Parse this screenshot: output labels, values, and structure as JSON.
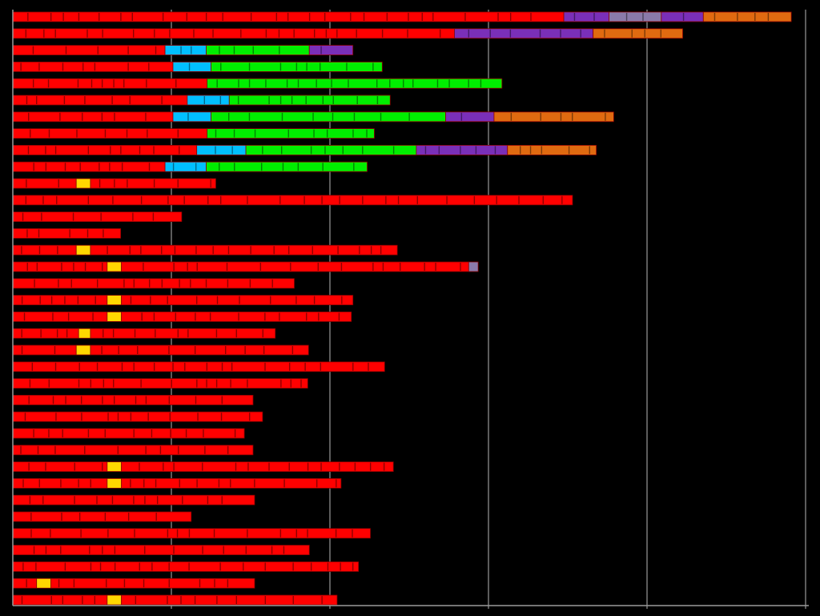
{
  "chart_data": {
    "type": "bar",
    "orientation": "horizontal",
    "stacked": true,
    "title": "",
    "xlabel": "",
    "ylabel": "",
    "xlim": [
      0,
      10
    ],
    "grid": true,
    "gridlines_x": [
      2,
      4,
      6,
      8,
      10
    ],
    "colors": {
      "red": "#ff0000",
      "cyan": "#00bfff",
      "green": "#00ee00",
      "purple": "#7a2fb8",
      "lavender": "#8a7aaa",
      "orange": "#e06a10",
      "yellow": "#ffd700",
      "bar_edge": "#8a0000",
      "background": "#000000",
      "gridline": "#9a9a9a"
    },
    "rows": [
      {
        "segments": [
          [
            "red",
            6.95
          ],
          [
            "purple",
            0.57
          ],
          [
            "lavender",
            0.66
          ],
          [
            "purple",
            0.53
          ],
          [
            "orange",
            1.11
          ]
        ]
      },
      {
        "segments": [
          [
            "red",
            5.57
          ],
          [
            "purple",
            1.75
          ],
          [
            "orange",
            1.13
          ]
        ]
      },
      {
        "segments": [
          [
            "red",
            1.92
          ],
          [
            "cyan",
            0.52
          ],
          [
            "green",
            1.3
          ],
          [
            "purple",
            0.55
          ]
        ]
      },
      {
        "segments": [
          [
            "red",
            2.02
          ],
          [
            "cyan",
            0.48
          ],
          [
            "green",
            2.16
          ]
        ]
      },
      {
        "segments": [
          [
            "red",
            2.45
          ],
          [
            "green",
            3.72
          ]
        ]
      },
      {
        "segments": [
          [
            "red",
            2.2
          ],
          [
            "cyan",
            0.53
          ],
          [
            "green",
            2.03
          ]
        ]
      },
      {
        "segments": [
          [
            "red",
            2.02
          ],
          [
            "cyan",
            0.48
          ],
          [
            "green",
            2.96
          ],
          [
            "purple",
            0.61
          ],
          [
            "orange",
            1.51
          ]
        ]
      },
      {
        "segments": [
          [
            "red",
            2.45
          ],
          [
            "green",
            2.11
          ]
        ]
      },
      {
        "segments": [
          [
            "red",
            2.32
          ],
          [
            "cyan",
            0.62
          ],
          [
            "green",
            2.15
          ],
          [
            "purple",
            1.15
          ],
          [
            "orange",
            1.12
          ]
        ]
      },
      {
        "segments": [
          [
            "red",
            1.92
          ],
          [
            "cyan",
            0.52
          ],
          [
            "green",
            2.03
          ]
        ]
      },
      {
        "segments": [
          [
            "red",
            0.8
          ],
          [
            "yellow",
            0.18
          ],
          [
            "red",
            1.58
          ]
        ]
      },
      {
        "segments": [
          [
            "red",
            7.06
          ]
        ]
      },
      {
        "segments": [
          [
            "red",
            2.13
          ]
        ]
      },
      {
        "segments": [
          [
            "red",
            1.36
          ]
        ]
      },
      {
        "segments": [
          [
            "red",
            0.8
          ],
          [
            "yellow",
            0.18
          ],
          [
            "red",
            3.87
          ]
        ]
      },
      {
        "segments": [
          [
            "red",
            1.19
          ],
          [
            "yellow",
            0.18
          ],
          [
            "red",
            4.38
          ],
          [
            "lavender",
            0.12
          ]
        ]
      },
      {
        "segments": [
          [
            "red",
            3.55
          ]
        ]
      },
      {
        "segments": [
          [
            "red",
            1.19
          ],
          [
            "yellow",
            0.18
          ],
          [
            "red",
            2.92
          ]
        ]
      },
      {
        "segments": [
          [
            "red",
            1.19
          ],
          [
            "yellow",
            0.18
          ],
          [
            "red",
            2.9
          ]
        ]
      },
      {
        "segments": [
          [
            "red",
            0.83
          ],
          [
            "yellow",
            0.15
          ],
          [
            "red",
            2.33
          ]
        ]
      },
      {
        "segments": [
          [
            "red",
            0.8
          ],
          [
            "yellow",
            0.18
          ],
          [
            "red",
            2.75
          ]
        ]
      },
      {
        "segments": [
          [
            "red",
            4.69
          ]
        ]
      },
      {
        "segments": [
          [
            "red",
            3.72
          ]
        ]
      },
      {
        "segments": [
          [
            "red",
            3.03
          ]
        ]
      },
      {
        "segments": [
          [
            "red",
            3.15
          ]
        ]
      },
      {
        "segments": [
          [
            "red",
            2.92
          ]
        ]
      },
      {
        "segments": [
          [
            "red",
            3.03
          ]
        ]
      },
      {
        "segments": [
          [
            "red",
            1.19
          ],
          [
            "yellow",
            0.18
          ],
          [
            "red",
            3.43
          ]
        ]
      },
      {
        "segments": [
          [
            "red",
            1.19
          ],
          [
            "yellow",
            0.18
          ],
          [
            "red",
            2.77
          ]
        ]
      },
      {
        "segments": [
          [
            "red",
            3.05
          ]
        ]
      },
      {
        "segments": [
          [
            "red",
            2.25
          ]
        ]
      },
      {
        "segments": [
          [
            "red",
            4.51
          ]
        ]
      },
      {
        "segments": [
          [
            "red",
            3.74
          ]
        ]
      },
      {
        "segments": [
          [
            "red",
            4.36
          ]
        ]
      },
      {
        "segments": [
          [
            "red",
            0.3
          ],
          [
            "yellow",
            0.18
          ],
          [
            "red",
            2.57
          ]
        ]
      },
      {
        "segments": [
          [
            "red",
            1.19
          ],
          [
            "yellow",
            0.18
          ],
          [
            "red",
            2.72
          ]
        ]
      }
    ]
  }
}
